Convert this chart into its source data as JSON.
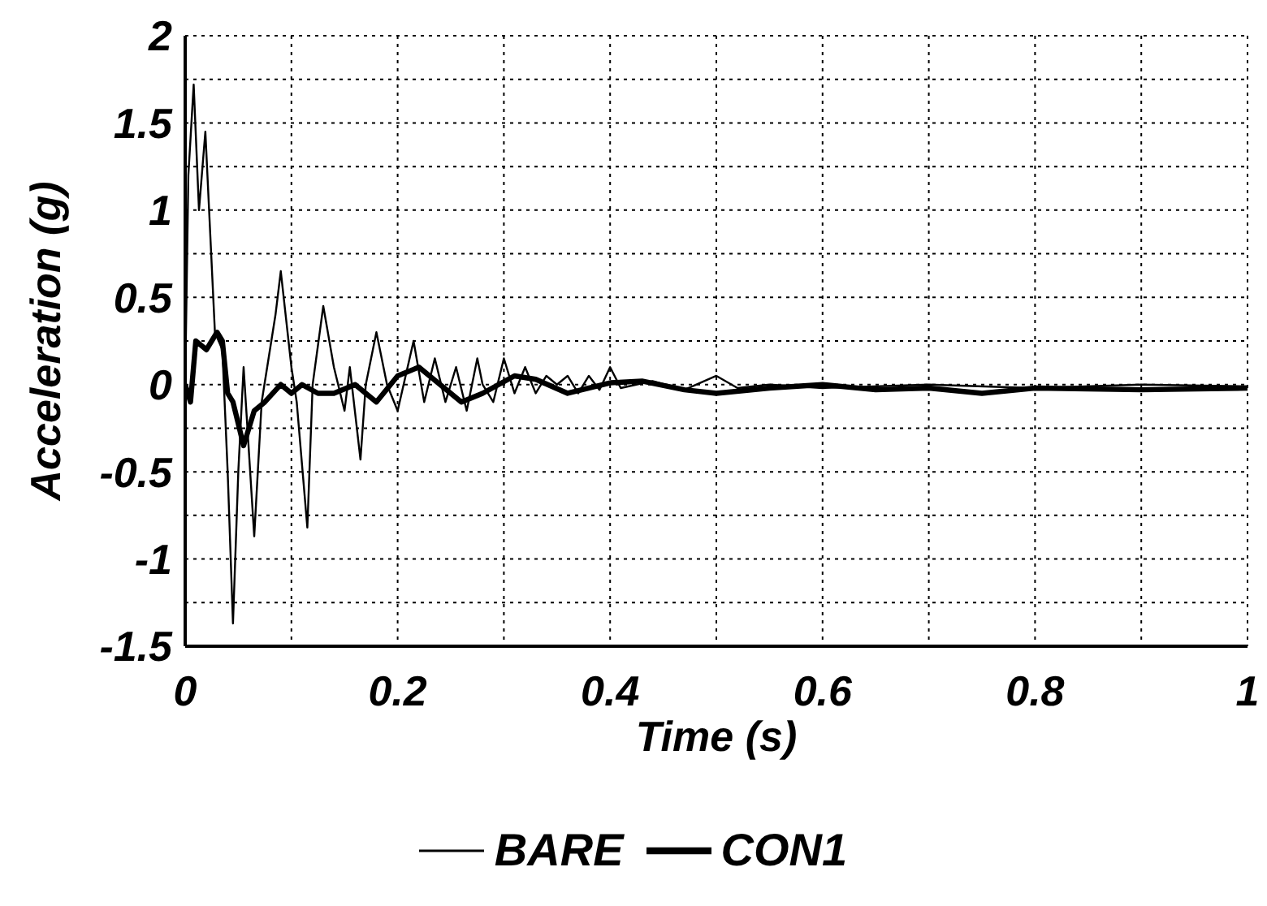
{
  "chart_data": {
    "type": "line",
    "xlabel": "Time (s)",
    "ylabel": "Acceleration (g)",
    "xlim": [
      0,
      1
    ],
    "ylim": [
      -1.5,
      2
    ],
    "xticks": [
      0,
      {
        "value": 0.1,
        "label": null
      },
      0.2,
      {
        "value": 0.3,
        "label": null
      },
      0.4,
      {
        "value": 0.5,
        "label": null
      },
      0.6,
      {
        "value": 0.7,
        "label": null
      },
      0.8,
      {
        "value": 0.9,
        "label": null
      },
      1
    ],
    "yticks": [
      -1.5,
      {
        "value": -1.25,
        "label": null
      },
      -1,
      {
        "value": -0.75,
        "label": null
      },
      -0.5,
      {
        "value": -0.25,
        "label": null
      },
      0,
      {
        "value": 0.25,
        "label": null
      },
      0.5,
      {
        "value": 0.75,
        "label": null
      },
      1,
      {
        "value": 1.25,
        "label": null
      },
      1.5,
      {
        "value": 1.75,
        "label": null
      },
      2
    ],
    "grid": true,
    "legend": "bottom",
    "marker": "none",
    "line_style": "solid",
    "series": [
      {
        "name": "BARE",
        "color": "#000000",
        "x": [
          0,
          0.003,
          0.008,
          0.013,
          0.019,
          0.028,
          0.035,
          0.04,
          0.045,
          0.05,
          0.055,
          0.065,
          0.072,
          0.085,
          0.09,
          0.1,
          0.105,
          0.115,
          0.12,
          0.13,
          0.14,
          0.15,
          0.155,
          0.165,
          0.17,
          0.18,
          0.19,
          0.2,
          0.215,
          0.225,
          0.235,
          0.245,
          0.255,
          0.265,
          0.275,
          0.28,
          0.29,
          0.3,
          0.31,
          0.32,
          0.33,
          0.34,
          0.35,
          0.36,
          0.37,
          0.38,
          0.39,
          0.4,
          0.41,
          0.44,
          0.47,
          0.5,
          0.52,
          0.55,
          0.6,
          0.7,
          0.8,
          0.9,
          1
        ],
        "values": [
          0,
          1.2,
          1.72,
          1,
          1.45,
          0.3,
          0.2,
          -0.5,
          -1.37,
          -0.5,
          0.1,
          -0.87,
          -0.1,
          0.4,
          0.65,
          0.1,
          -0.1,
          -0.82,
          0,
          0.45,
          0.1,
          -0.15,
          0.1,
          -0.43,
          0,
          0.3,
          0,
          -0.15,
          0.25,
          -0.1,
          0.15,
          -0.1,
          0.1,
          -0.15,
          0.15,
          0,
          -0.1,
          0.15,
          -0.05,
          0.1,
          -0.05,
          0.05,
          0,
          0.05,
          -0.05,
          0.05,
          -0.03,
          0.1,
          -0.02,
          0.02,
          -0.03,
          0.05,
          -0.02,
          0,
          -0.02,
          0,
          -0.02,
          0,
          -0.01
        ]
      },
      {
        "name": "CON1",
        "color": "#000000",
        "x": [
          0,
          0.005,
          0.01,
          0.02,
          0.03,
          0.035,
          0.04,
          0.045,
          0.055,
          0.065,
          0.075,
          0.09,
          0.1,
          0.11,
          0.125,
          0.14,
          0.16,
          0.18,
          0.2,
          0.22,
          0.24,
          0.26,
          0.28,
          0.31,
          0.33,
          0.36,
          0.4,
          0.43,
          0.47,
          0.5,
          0.55,
          0.6,
          0.65,
          0.7,
          0.75,
          0.8,
          0.9,
          1
        ],
        "values": [
          0,
          -0.1,
          0.25,
          0.2,
          0.3,
          0.25,
          -0.05,
          -0.1,
          -0.35,
          -0.15,
          -0.1,
          0,
          -0.05,
          0,
          -0.05,
          -0.05,
          0,
          -0.1,
          0.05,
          0.1,
          0,
          -0.1,
          -0.05,
          0.05,
          0.03,
          -0.05,
          0.01,
          0.02,
          -0.03,
          -0.05,
          -0.02,
          0,
          -0.03,
          -0.02,
          -0.05,
          -0.02,
          -0.03,
          -0.02
        ]
      }
    ]
  }
}
